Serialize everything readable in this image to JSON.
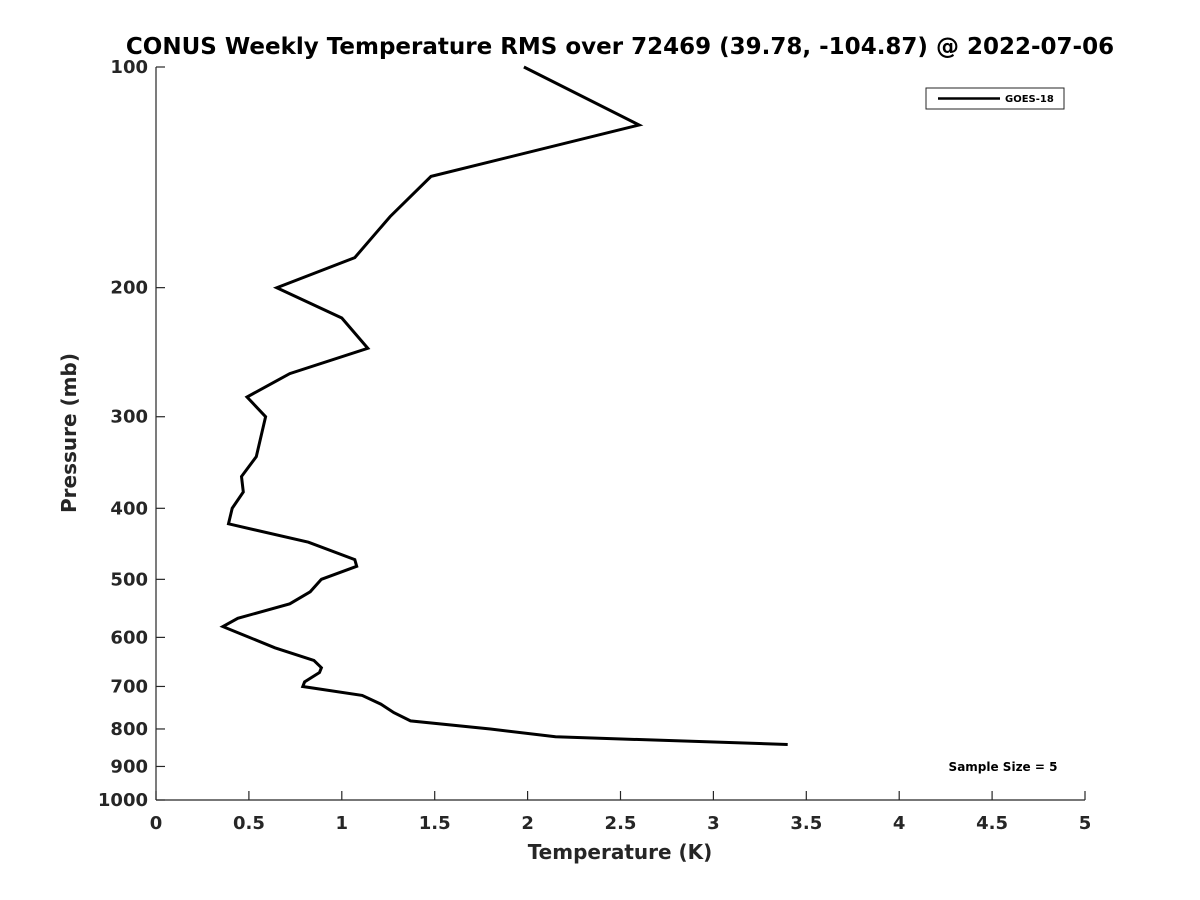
{
  "chart_data": {
    "type": "line",
    "title": "CONUS Weekly Temperature RMS over 72469 (39.78, -104.87) @ 2022-07-06",
    "xlabel": "Temperature (K)",
    "ylabel": "Pressure (mb)",
    "xlim": [
      0,
      5
    ],
    "ylim": [
      1000,
      100
    ],
    "yscale": "log",
    "y_reversed": true,
    "xticks": [
      "0",
      "0.5",
      "1",
      "1.5",
      "2",
      "2.5",
      "3",
      "3.5",
      "4",
      "4.5",
      "5"
    ],
    "xtick_values": [
      0,
      0.5,
      1,
      1.5,
      2,
      2.5,
      3,
      3.5,
      4,
      4.5,
      5
    ],
    "yticks": [
      "100",
      "200",
      "300",
      "400",
      "500",
      "600",
      "700",
      "800",
      "900",
      "1000"
    ],
    "ytick_values": [
      100,
      200,
      300,
      400,
      500,
      600,
      700,
      800,
      900,
      1000
    ],
    "grid": false,
    "legend_position": "top-right",
    "series": [
      {
        "name": "GOES-18",
        "color": "#000000",
        "points": [
          {
            "x": 1.98,
            "p": 100
          },
          {
            "x": 2.6,
            "p": 120
          },
          {
            "x": 1.48,
            "p": 141
          },
          {
            "x": 1.26,
            "p": 160
          },
          {
            "x": 1.07,
            "p": 182
          },
          {
            "x": 0.65,
            "p": 200
          },
          {
            "x": 1.0,
            "p": 220
          },
          {
            "x": 1.14,
            "p": 242
          },
          {
            "x": 0.72,
            "p": 262
          },
          {
            "x": 0.49,
            "p": 282
          },
          {
            "x": 0.59,
            "p": 300
          },
          {
            "x": 0.54,
            "p": 340
          },
          {
            "x": 0.46,
            "p": 362
          },
          {
            "x": 0.47,
            "p": 380
          },
          {
            "x": 0.41,
            "p": 400
          },
          {
            "x": 0.39,
            "p": 420
          },
          {
            "x": 0.82,
            "p": 445
          },
          {
            "x": 1.07,
            "p": 470
          },
          {
            "x": 1.08,
            "p": 480
          },
          {
            "x": 0.89,
            "p": 500
          },
          {
            "x": 0.83,
            "p": 520
          },
          {
            "x": 0.72,
            "p": 540
          },
          {
            "x": 0.44,
            "p": 565
          },
          {
            "x": 0.36,
            "p": 580
          },
          {
            "x": 0.64,
            "p": 620
          },
          {
            "x": 0.85,
            "p": 645
          },
          {
            "x": 0.89,
            "p": 660
          },
          {
            "x": 0.88,
            "p": 670
          },
          {
            "x": 0.8,
            "p": 690
          },
          {
            "x": 0.79,
            "p": 700
          },
          {
            "x": 1.11,
            "p": 720
          },
          {
            "x": 1.21,
            "p": 740
          },
          {
            "x": 1.28,
            "p": 760
          },
          {
            "x": 1.37,
            "p": 780
          },
          {
            "x": 1.8,
            "p": 800
          },
          {
            "x": 2.15,
            "p": 820
          },
          {
            "x": 3.4,
            "p": 840
          }
        ]
      }
    ],
    "annotations": [
      "Sample Size = 5"
    ]
  }
}
